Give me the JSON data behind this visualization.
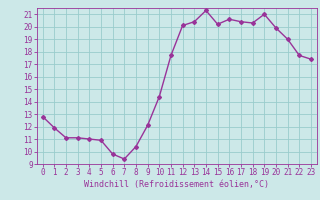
{
  "x": [
    0,
    1,
    2,
    3,
    4,
    5,
    6,
    7,
    8,
    9,
    10,
    11,
    12,
    13,
    14,
    15,
    16,
    17,
    18,
    19,
    20,
    21,
    22,
    23
  ],
  "y": [
    12.8,
    11.9,
    11.1,
    11.1,
    11.0,
    10.9,
    9.8,
    9.4,
    10.4,
    12.1,
    14.4,
    17.7,
    20.1,
    20.4,
    21.3,
    20.2,
    20.6,
    20.4,
    20.3,
    21.0,
    19.9,
    19.0,
    17.7,
    17.4
  ],
  "color": "#993399",
  "bg_color": "#cce8e8",
  "grid_color": "#99cccc",
  "xlabel": "Windchill (Refroidissement éolien,°C)",
  "xlim": [
    -0.5,
    23.5
  ],
  "ylim": [
    9,
    21.5
  ],
  "yticks": [
    9,
    10,
    11,
    12,
    13,
    14,
    15,
    16,
    17,
    18,
    19,
    20,
    21
  ],
  "xticks": [
    0,
    1,
    2,
    3,
    4,
    5,
    6,
    7,
    8,
    9,
    10,
    11,
    12,
    13,
    14,
    15,
    16,
    17,
    18,
    19,
    20,
    21,
    22,
    23
  ],
  "tick_color": "#993399",
  "marker": "D",
  "markersize": 2,
  "linewidth": 1.0,
  "tick_fontsize": 5.5,
  "xlabel_fontsize": 6.0
}
